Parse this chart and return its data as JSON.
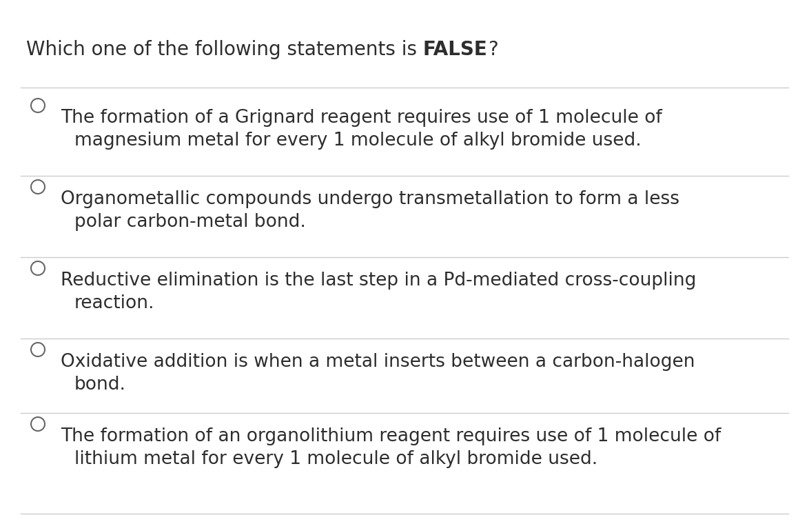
{
  "background_color": "#ffffff",
  "title_normal": "Which one of the following statements is ",
  "title_bold": "FALSE",
  "title_suffix": "?",
  "title_fontsize": 20,
  "option_fontsize": 19,
  "text_color": "#2d2d2d",
  "circle_color": "#666666",
  "line_color": "#cccccc",
  "options": [
    {
      "line1": "The formation of a Grignard reagent requires use of 1 molecule of",
      "line2": "magnesium metal for every 1 molecule of alkyl bromide used."
    },
    {
      "line1": "Organometallic compounds undergo transmetallation to form a less",
      "line2": "polar carbon-metal bond."
    },
    {
      "line1": "Reductive elimination is the last step in a Pd-mediated cross-coupling",
      "line2": "reaction."
    },
    {
      "line1": "Oxidative addition is when a metal inserts between a carbon-halogen",
      "line2": "bond."
    },
    {
      "line1": "The formation of an organolithium reagent requires use of 1 molecule of",
      "line2": "lithium metal for every 1 molecule of alkyl bromide used."
    }
  ]
}
